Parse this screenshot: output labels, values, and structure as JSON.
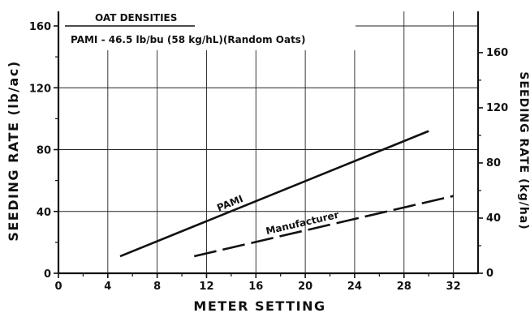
{
  "chart_data": {
    "type": "line",
    "title": "OAT DENSITIES",
    "subtitle": "PAMI - 46.5 lb/bu (58 kg/hL)(Random Oats)",
    "xlabel": "METER SETTING",
    "ylabel": "SEEDING RATE (lb/ac)",
    "ylabel_right": "SEEDING RATE (kg/ha)",
    "xlim": [
      0,
      34
    ],
    "ylim": [
      0,
      160
    ],
    "x_ticks": [
      "0",
      "4",
      "8",
      "12",
      "16",
      "20",
      "24",
      "28",
      "32"
    ],
    "y_ticks": [
      "0",
      "40",
      "80",
      "120",
      "160"
    ],
    "y_ticks_right": [
      "0",
      "40",
      "80",
      "120",
      "160"
    ],
    "grid": true,
    "series": [
      {
        "name": "PAMI",
        "style": "solid",
        "color": "#111111",
        "x": [
          5,
          30
        ],
        "y": [
          11,
          92
        ]
      },
      {
        "name": "Manufacturer",
        "style": "dashed",
        "color": "#111111",
        "x": [
          11,
          32
        ],
        "y": [
          11,
          50
        ]
      }
    ]
  }
}
